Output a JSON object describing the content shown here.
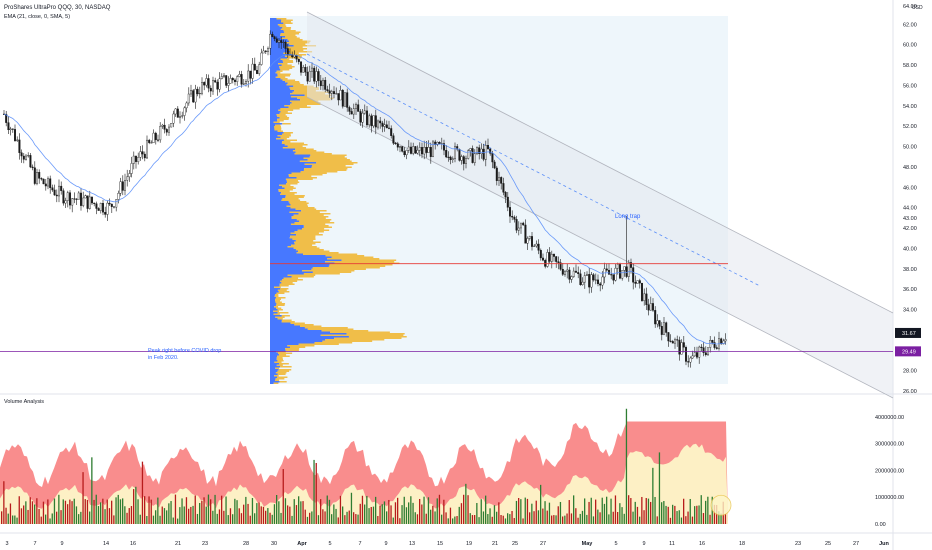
{
  "header": {
    "symbol_line": "ProShares UltraPro QQQ, 30, NASDAQ",
    "indicator_line": "EMA (21, close, 0, SMA, 5)"
  },
  "price_axis": {
    "unit": "USD",
    "ticks": [
      "64.00",
      "62.00",
      "60.00",
      "58.00",
      "56.00",
      "54.00",
      "52.00",
      "50.00",
      "48.00",
      "46.00",
      "44.00",
      "43.00",
      "42.00",
      "40.00",
      "38.00",
      "36.00",
      "34.00",
      "32.00",
      "30.00",
      "28.00",
      "26.00"
    ],
    "current_price": "31.67",
    "hline_label": "29.49"
  },
  "volume_axis": {
    "ticks": [
      "4000000.00",
      "3000000.00",
      "2000000.00",
      "1000000.00",
      "0.00"
    ]
  },
  "date_axis": {
    "ticks": [
      "3",
      "7",
      "9",
      "14",
      "16",
      "21",
      "23",
      "28",
      "30",
      "Apr",
      "5",
      "7",
      "9",
      "13",
      "15",
      "19",
      "21",
      "25",
      "27",
      "May",
      "5",
      "9",
      "11",
      "16",
      "18",
      "23",
      "25",
      "27",
      "Jun"
    ]
  },
  "annotations": {
    "long_trap": "Long trap",
    "covid_note_line1": "Peak right before COVID drop",
    "covid_note_line2": "in Feb 2020."
  },
  "volume_panel": {
    "title": "Volume Analysis"
  },
  "colors": {
    "up": "#26a69a",
    "candle": "#1a1a1a",
    "ema": "#5b8ff9",
    "channel": "#b2b5be",
    "profile_up": "#2962ff",
    "profile_down": "#f0b429",
    "red_line": "#e53935",
    "purple_line": "#7b1fa2",
    "vol_band_red": "#f87171",
    "vol_band_yellow": "#fdf6c8",
    "vol_bar_green": "#2e7d32",
    "vol_bar_red": "#b71c1c"
  },
  "chart_data": {
    "type": "candlestick",
    "title": "ProShares UltraPro QQQ, 30, NASDAQ",
    "ylim": [
      26,
      64
    ],
    "horizontal_levels": [
      38.5,
      29.5
    ],
    "price_path": [
      {
        "x": "3",
        "y": 53.2
      },
      {
        "x": "7",
        "y": 47.0
      },
      {
        "x": "9",
        "y": 45.3
      },
      {
        "x": "14",
        "y": 44.0
      },
      {
        "x": "16",
        "y": 48.5
      },
      {
        "x": "21",
        "y": 55.8
      },
      {
        "x": "23",
        "y": 56.5
      },
      {
        "x": "28",
        "y": 57.5
      },
      {
        "x": "30",
        "y": 61.5
      },
      {
        "x": "Apr",
        "y": 57.5
      },
      {
        "x": "5",
        "y": 56.0
      },
      {
        "x": "7",
        "y": 53.0
      },
      {
        "x": "9",
        "y": 51.8
      },
      {
        "x": "13",
        "y": 49.3
      },
      {
        "x": "15",
        "y": 49.8
      },
      {
        "x": "19",
        "y": 49.0
      },
      {
        "x": "21",
        "y": 49.5
      },
      {
        "x": "25",
        "y": 42.5
      },
      {
        "x": "27",
        "y": 39.0
      },
      {
        "x": "May",
        "y": 36.8
      },
      {
        "x": "5",
        "y": 38.0
      },
      {
        "x": "9",
        "y": 33.0
      },
      {
        "x": "11",
        "y": 29.0
      },
      {
        "x": "16",
        "y": 31.67
      }
    ],
    "volume_max": 4500000
  }
}
